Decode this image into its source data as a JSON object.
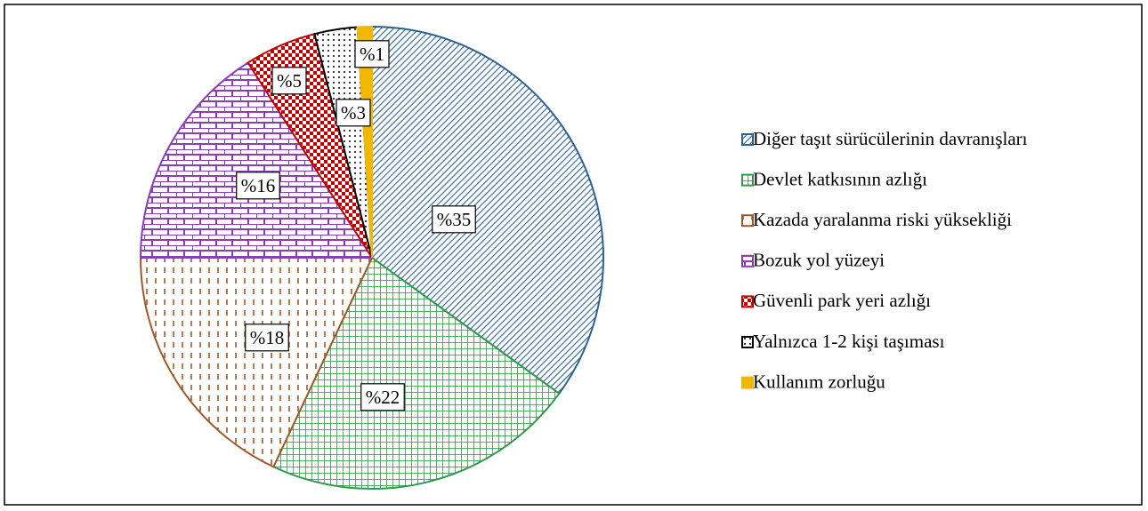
{
  "chart_data": {
    "type": "pie",
    "categories": [
      "Diğer taşıt sürücülerinin davranışları",
      "Devlet katkısının azlığı",
      "Kazada yaralanma riski yüksekliği",
      "Bozuk yol yüzeyi",
      "Güvenli park yeri azlığı",
      "Yalnızca 1-2 kişi taşıması",
      "Kullanım zorluğu"
    ],
    "values": [
      35,
      22,
      18,
      16,
      5,
      3,
      1
    ],
    "value_labels": [
      "%35",
      "%22",
      "%18",
      "%16",
      "%5",
      "%3",
      "%1"
    ],
    "colors": [
      "#2e6190",
      "#2e9a4a",
      "#9c5a2a",
      "#8a3fb0",
      "#c00000",
      "#000000",
      "#f2b800"
    ],
    "patterns": [
      "diagonal",
      "grid",
      "dashes",
      "brick",
      "checker",
      "dots",
      "solid"
    ],
    "legend": "right"
  }
}
